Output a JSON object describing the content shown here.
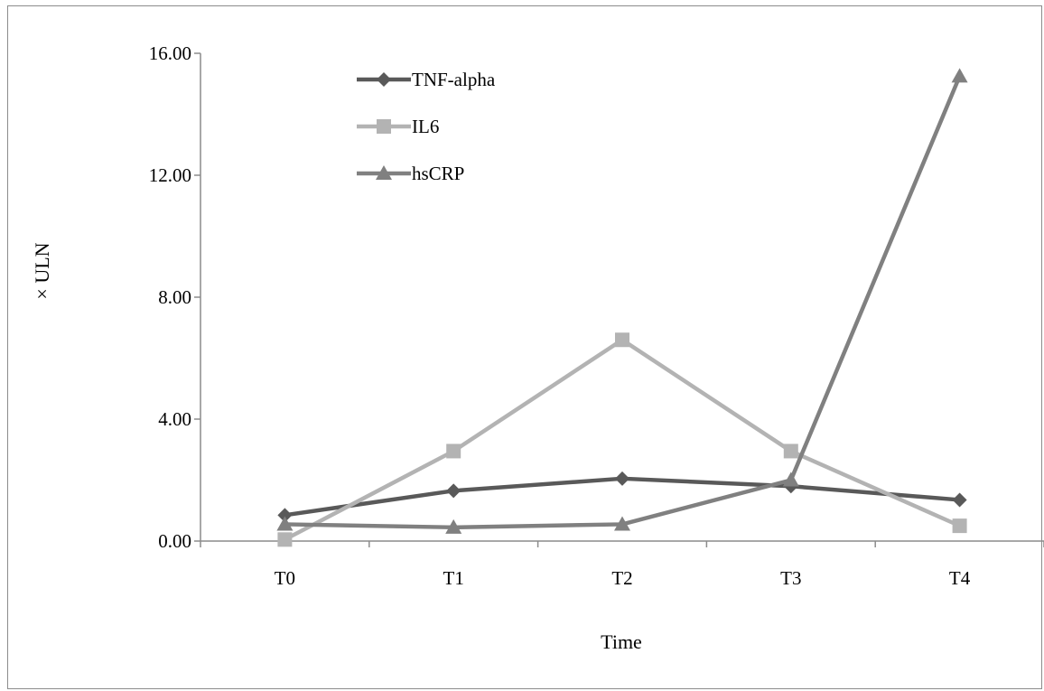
{
  "chart_data": {
    "type": "line",
    "title": "",
    "xlabel": "Time",
    "ylabel": "× ULN",
    "categories": [
      "T0",
      "T1",
      "T2",
      "T3",
      "T4"
    ],
    "ylim": [
      0,
      16
    ],
    "yticks": [
      0,
      4,
      8,
      12,
      16
    ],
    "ytick_labels": [
      "0.00",
      "4.00",
      "8.00",
      "12.00",
      "16.00"
    ],
    "grid": false,
    "legend_position": "top-left inside plot",
    "series": [
      {
        "name": "TNF-alpha",
        "marker": "diamond",
        "color": "#595959",
        "values": [
          0.85,
          1.65,
          2.05,
          1.8,
          1.35
        ]
      },
      {
        "name": "IL6",
        "marker": "square",
        "color": "#b3b3b3",
        "values": [
          0.05,
          2.95,
          6.6,
          2.95,
          0.5
        ]
      },
      {
        "name": "hsCRP",
        "marker": "triangle",
        "color": "#808080",
        "values": [
          0.55,
          0.45,
          0.55,
          2.0,
          15.25
        ]
      }
    ]
  }
}
